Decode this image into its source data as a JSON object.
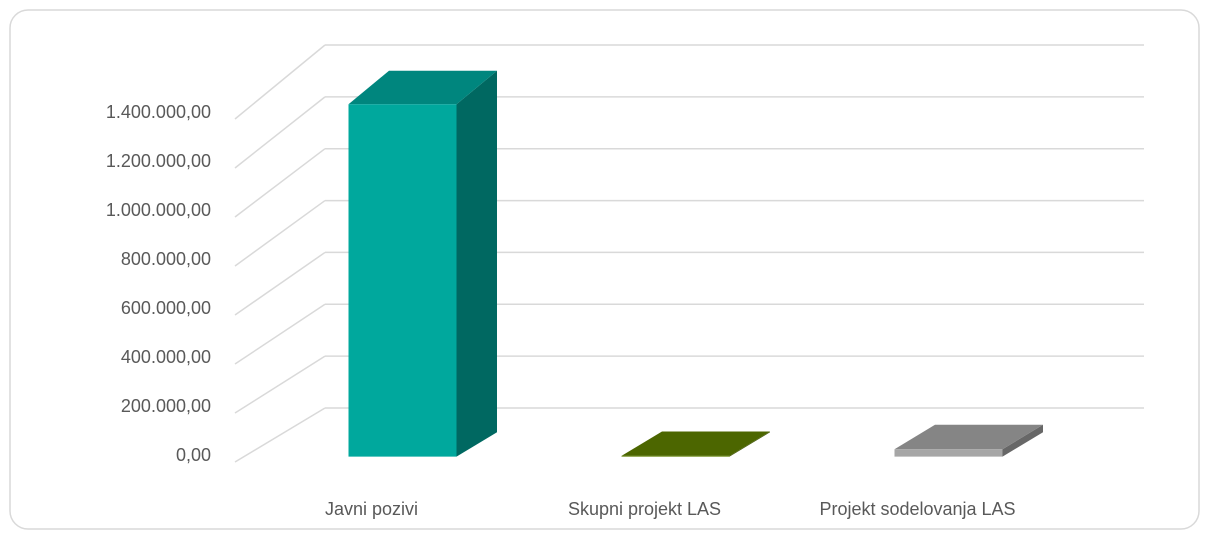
{
  "chart_data": {
    "type": "bar3d",
    "categories": [
      "Javni pozivi",
      "Skupni projekt LAS",
      "Projekt sodelovanja LAS"
    ],
    "values": [
      1430000,
      3000,
      30000
    ],
    "colors": [
      "#00a89d",
      "#5f7f00",
      "#a6a6a6"
    ],
    "ylim": [
      0,
      1400000
    ],
    "yticks": [
      {
        "value": 0,
        "label": "0,00"
      },
      {
        "value": 200000,
        "label": "200.000,00"
      },
      {
        "value": 400000,
        "label": "400.000,00"
      },
      {
        "value": 600000,
        "label": "600.000,00"
      },
      {
        "value": 800000,
        "label": "800.000,00"
      },
      {
        "value": 1000000,
        "label": "1.000.000,00"
      },
      {
        "value": 1200000,
        "label": "1.200.000,00"
      },
      {
        "value": 1400000,
        "label": "1.400.000,00"
      }
    ],
    "grid": true
  }
}
